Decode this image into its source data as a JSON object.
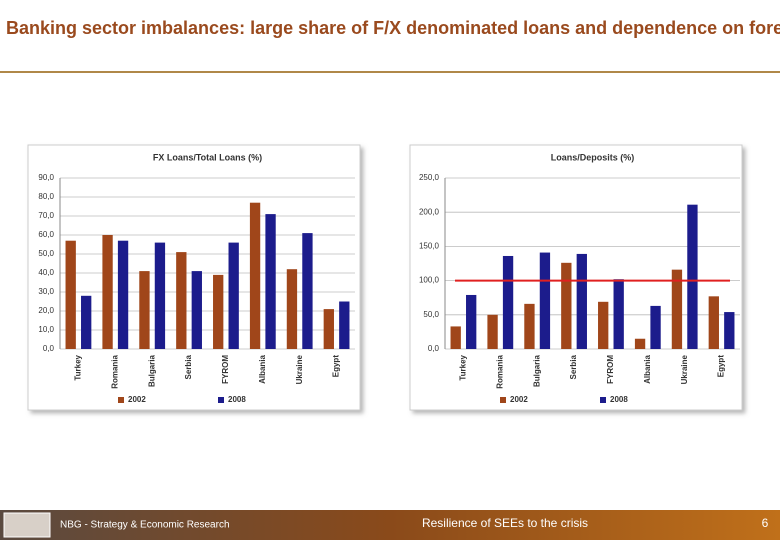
{
  "header": {
    "title": "Banking sector imbalances: large share of F/X denominated loans and dependence on foreign funding"
  },
  "footer": {
    "left": "NBG - Strategy & Economic Research",
    "center": "Resilience of SEEs to the crisis",
    "page": "6"
  },
  "chart_data": [
    {
      "type": "bar",
      "title": "FX Loans/Total Loans (%)",
      "categories": [
        "Turkey",
        "Romania",
        "Bulgaria",
        "Serbia",
        "FYROM",
        "Albania",
        "Ukraine",
        "Egypt"
      ],
      "series": [
        {
          "name": "2002",
          "color": "#a0461a",
          "values": [
            57,
            60,
            41,
            51,
            39,
            77,
            42,
            21
          ]
        },
        {
          "name": "2008",
          "color": "#1c1c8c",
          "values": [
            28,
            57,
            56,
            41,
            56,
            71,
            61,
            25
          ]
        }
      ],
      "ylim": [
        0,
        90
      ],
      "yticks": [
        {
          "value": 0,
          "label": "0,0"
        },
        {
          "value": 10,
          "label": "10,0"
        },
        {
          "value": 20,
          "label": "20,0"
        },
        {
          "value": 30,
          "label": "30,0"
        },
        {
          "value": 40,
          "label": "40,0"
        },
        {
          "value": 50,
          "label": "50,0"
        },
        {
          "value": 60,
          "label": "60,0"
        },
        {
          "value": 70,
          "label": "70,0"
        },
        {
          "value": 80,
          "label": "80,0"
        },
        {
          "value": 90,
          "label": "90,0"
        }
      ],
      "grid": true
    },
    {
      "type": "bar",
      "title": "Loans/Deposits (%)",
      "categories": [
        "Turkey",
        "Romania",
        "Bulgaria",
        "Serbia",
        "FYROM",
        "Albania",
        "Ukraine",
        "Egypt"
      ],
      "series": [
        {
          "name": "2002",
          "color": "#a0461a",
          "values": [
            33,
            50,
            66,
            126,
            69,
            15,
            116,
            77
          ]
        },
        {
          "name": "2008",
          "color": "#1c1c8c",
          "values": [
            79,
            136,
            141,
            139,
            102,
            63,
            211,
            54
          ]
        }
      ],
      "ylim": [
        0,
        250
      ],
      "yticks": [
        {
          "value": 0,
          "label": "0,0"
        },
        {
          "value": 50,
          "label": "50,0"
        },
        {
          "value": 100,
          "label": "100,0"
        },
        {
          "value": 150,
          "label": "150,0"
        },
        {
          "value": 200,
          "label": "200,0"
        },
        {
          "value": 250,
          "label": "250,0"
        }
      ],
      "reference_line": {
        "value": 100,
        "color": "#e02020"
      },
      "grid": true
    }
  ]
}
